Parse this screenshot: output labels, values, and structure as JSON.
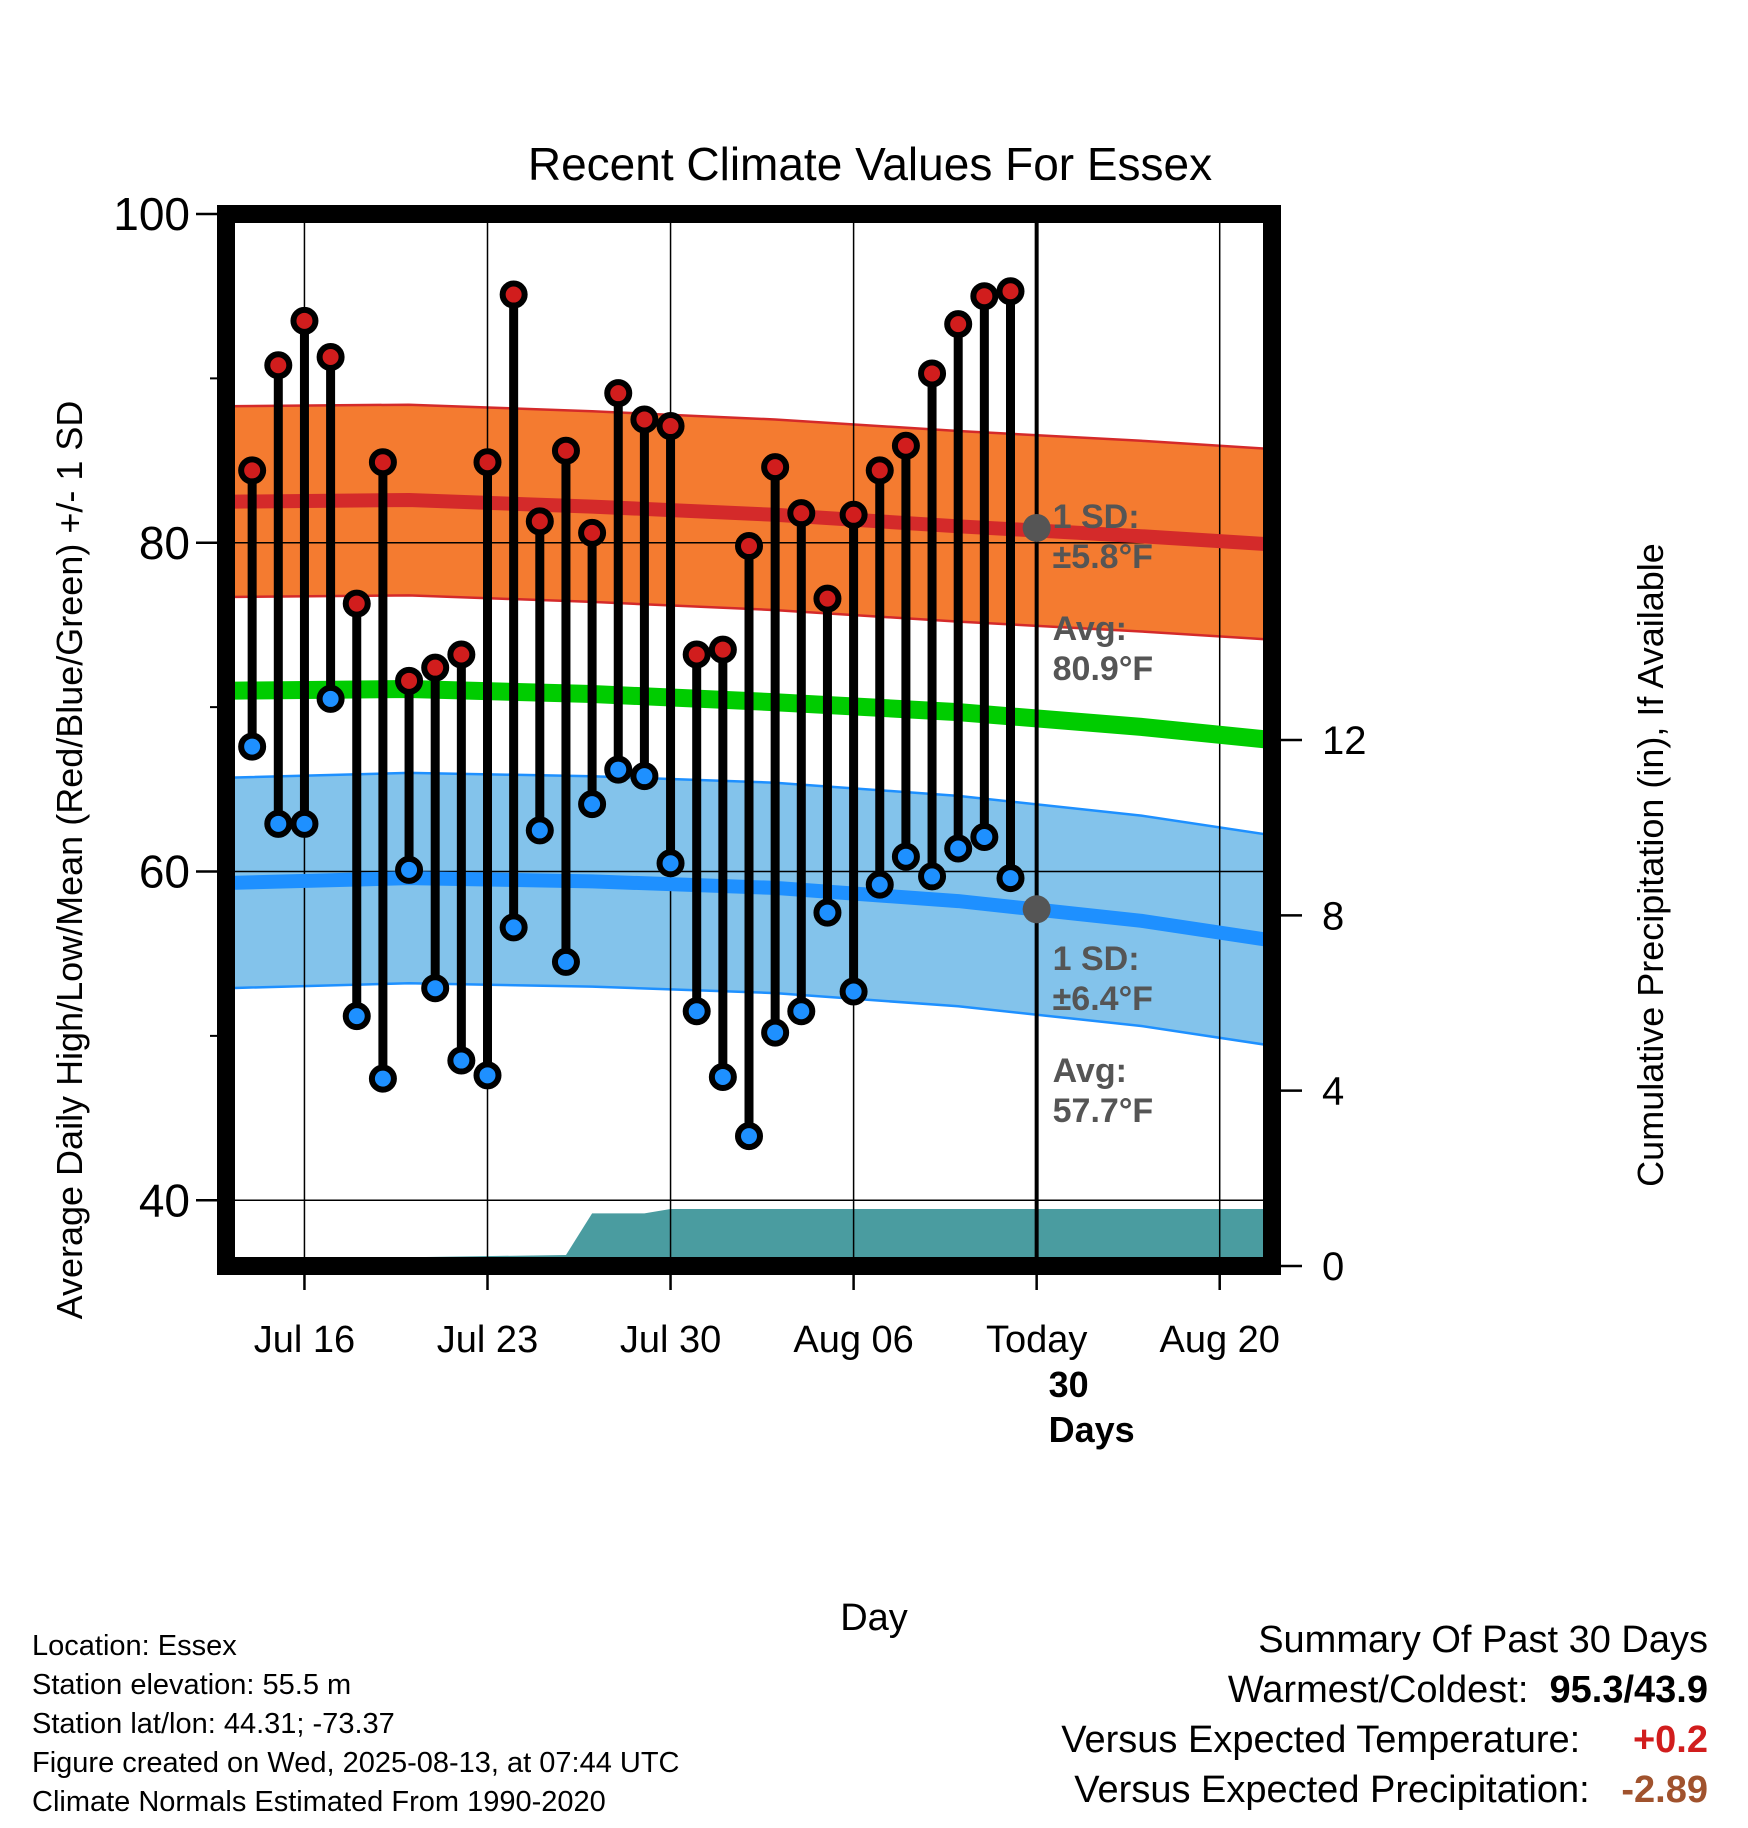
{
  "chart_data": {
    "type": "line",
    "title": "Recent Climate Values For Essex",
    "xlabel": "Day",
    "ylabel": "Average Daily High/Low/Mean (Red/Blue/Green) +/- 1 SD",
    "y2label": "Cumulative Precipitation (in), If Available",
    "ylim": [
      36,
      100
    ],
    "y2lim": [
      0,
      24
    ],
    "x_start": "2025-07-13",
    "x_end": "2025-08-22",
    "yticks": [
      40,
      60,
      80,
      100
    ],
    "y2ticks": [
      0,
      4,
      8,
      12
    ],
    "xticks": [
      {
        "date": "2025-07-16",
        "label": "Jul 16"
      },
      {
        "date": "2025-07-23",
        "label": "Jul 23"
      },
      {
        "date": "2025-07-30",
        "label": "Jul 30"
      },
      {
        "date": "2025-08-06",
        "label": "Aug 06"
      },
      {
        "date": "2025-08-13",
        "label": "Today"
      },
      {
        "date": "2025-08-20",
        "label": "Aug 20"
      }
    ],
    "today": "2025-08-13",
    "grid": true,
    "series": [
      {
        "name": "High",
        "color": "#d11d1d",
        "dates": [
          "2025-07-14",
          "2025-07-15",
          "2025-07-16",
          "2025-07-17",
          "2025-07-18",
          "2025-07-19",
          "2025-07-20",
          "2025-07-21",
          "2025-07-22",
          "2025-07-23",
          "2025-07-24",
          "2025-07-25",
          "2025-07-26",
          "2025-07-27",
          "2025-07-28",
          "2025-07-29",
          "2025-07-30",
          "2025-07-31",
          "2025-08-01",
          "2025-08-02",
          "2025-08-03",
          "2025-08-04",
          "2025-08-05",
          "2025-08-06",
          "2025-08-07",
          "2025-08-08",
          "2025-08-09",
          "2025-08-10",
          "2025-08-11",
          "2025-08-12"
        ],
        "values": [
          84.4,
          90.8,
          93.5,
          91.3,
          76.3,
          84.9,
          71.6,
          72.4,
          73.2,
          84.9,
          95.1,
          81.3,
          85.6,
          80.6,
          89.1,
          87.5,
          87.1,
          73.2,
          73.5,
          79.8,
          84.6,
          81.8,
          76.6,
          81.7,
          84.4,
          85.9,
          90.3,
          93.3,
          95.0,
          95.3
        ]
      },
      {
        "name": "Low",
        "color": "#1e90ff",
        "dates": [
          "2025-07-14",
          "2025-07-15",
          "2025-07-16",
          "2025-07-17",
          "2025-07-18",
          "2025-07-19",
          "2025-07-20",
          "2025-07-21",
          "2025-07-22",
          "2025-07-23",
          "2025-07-24",
          "2025-07-25",
          "2025-07-26",
          "2025-07-27",
          "2025-07-28",
          "2025-07-29",
          "2025-07-30",
          "2025-07-31",
          "2025-08-01",
          "2025-08-02",
          "2025-08-03",
          "2025-08-04",
          "2025-08-05",
          "2025-08-06",
          "2025-08-07",
          "2025-08-08",
          "2025-08-09",
          "2025-08-10",
          "2025-08-11",
          "2025-08-12"
        ],
        "values": [
          67.6,
          62.9,
          62.9,
          70.5,
          51.2,
          47.4,
          60.1,
          52.9,
          48.5,
          47.6,
          56.6,
          62.5,
          54.5,
          64.1,
          66.2,
          65.8,
          60.5,
          51.5,
          47.5,
          43.9,
          50.2,
          51.5,
          57.5,
          52.7,
          59.2,
          60.9,
          59.7,
          61.4,
          62.1,
          59.6
        ]
      },
      {
        "name": "Normal High",
        "color": "#d42a2a",
        "dates": [
          "2025-07-13",
          "2025-07-20",
          "2025-07-27",
          "2025-08-03",
          "2025-08-10",
          "2025-08-17",
          "2025-08-22"
        ],
        "values": [
          82.5,
          82.6,
          82.2,
          81.7,
          81.0,
          80.4,
          79.9
        ]
      },
      {
        "name": "Normal Mean",
        "color": "#00cc00",
        "dates": [
          "2025-07-13",
          "2025-07-20",
          "2025-07-27",
          "2025-08-03",
          "2025-08-10",
          "2025-08-17",
          "2025-08-22"
        ],
        "values": [
          71.0,
          71.1,
          70.8,
          70.3,
          69.7,
          68.8,
          68.0
        ]
      },
      {
        "name": "Normal Low",
        "color": "#1e90ff",
        "dates": [
          "2025-07-13",
          "2025-07-20",
          "2025-07-27",
          "2025-08-03",
          "2025-08-10",
          "2025-08-17",
          "2025-08-22"
        ],
        "values": [
          59.3,
          59.6,
          59.4,
          59.0,
          58.2,
          57.0,
          55.8
        ]
      },
      {
        "name": "Cumulative Precipitation",
        "color": "#4a9ca0",
        "dates": [
          "2025-07-13",
          "2025-07-19",
          "2025-07-20",
          "2025-07-26",
          "2025-07-27",
          "2025-07-29",
          "2025-07-30",
          "2025-08-22"
        ],
        "values": [
          0.0,
          0.0,
          0.2,
          0.25,
          1.2,
          1.2,
          1.3,
          1.3
        ]
      }
    ],
    "sd_bands": {
      "high": {
        "color": "#f47b30",
        "sd_label": "1 SD:",
        "sd_value": "±5.8°F",
        "avg_label": "Avg:",
        "avg_value": "80.9°F",
        "today_avg": 80.9,
        "sd": 5.8
      },
      "low": {
        "color": "#83c3eb",
        "sd_label": "1 SD:",
        "sd_value": "±6.4°F",
        "avg_label": "Avg:",
        "avg_value": "57.7°F",
        "today_avg": 57.7,
        "sd": 6.4
      }
    },
    "period_label": [
      "30",
      "Days"
    ]
  },
  "info": {
    "location": "Location: Essex",
    "elevation": "Station elevation: 55.5 m",
    "latlon": "Station lat/lon: 44.31; -73.37",
    "created": "Figure created on Wed, 2025-08-13, at 07:44 UTC",
    "normals": "Climate Normals Estimated From 1990-2020"
  },
  "summary": {
    "title": "Summary Of Past 30 Days",
    "warm_cold_label": "Warmest/Coldest:",
    "warm_cold_value": "95.3/43.9",
    "temp_label": "Versus Expected Temperature:",
    "temp_value": "+0.2",
    "precip_label": "Versus Expected Precipitation:",
    "precip_value": "-2.89"
  }
}
